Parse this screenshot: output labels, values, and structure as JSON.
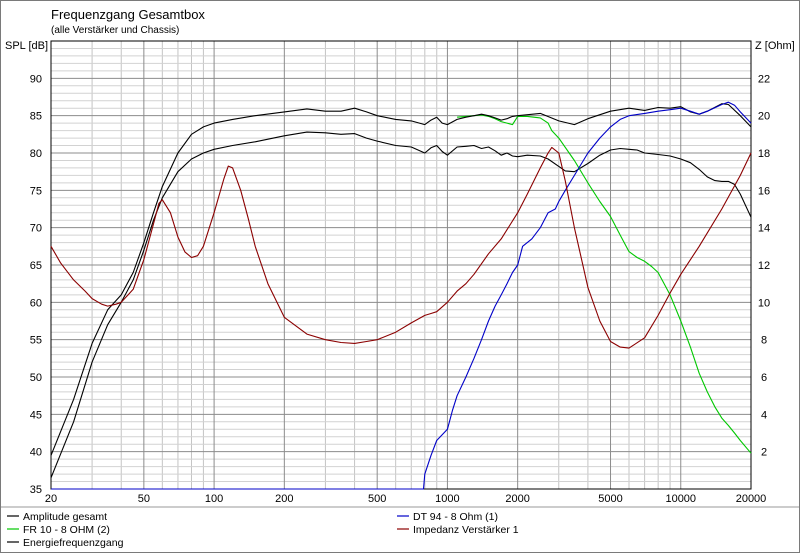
{
  "chart_data": {
    "type": "line",
    "title": "Frequenzgang Gesamtbox",
    "subtitle": "(alle Verstärker und Chassis)",
    "ylabel_left": "SPL [dB]",
    "ylabel_right": "Z [Ohm]",
    "xscale": "log",
    "xlim": [
      20,
      20000
    ],
    "ylim_left": [
      35,
      95
    ],
    "ylim_right": [
      0,
      24
    ],
    "x_ticks": [
      20,
      50,
      100,
      200,
      500,
      1000,
      2000,
      5000,
      10000,
      20000
    ],
    "x_tick_labels": [
      "20",
      "50",
      "100",
      "200",
      "500",
      "1000",
      "2000",
      "5000",
      "10000",
      "20000"
    ],
    "y_left_ticks": [
      35,
      40,
      45,
      50,
      55,
      60,
      65,
      70,
      75,
      80,
      85,
      90
    ],
    "y_left_tick_labels": [
      "35",
      "40",
      "45",
      "50",
      "55",
      "60",
      "65",
      "70",
      "75",
      "80",
      "85",
      "90"
    ],
    "y_right_ticks": [
      2,
      4,
      6,
      8,
      10,
      12,
      14,
      16,
      18,
      20,
      22
    ],
    "y_right_tick_labels": [
      "2",
      "4",
      "6",
      "8",
      "10",
      "12",
      "14",
      "16",
      "18",
      "20",
      "22"
    ],
    "grid": true,
    "legend_position": "bottom",
    "series": [
      {
        "name": "Amplitude gesamt",
        "color": "#000000",
        "axis": "left",
        "points": [
          [
            20,
            36.5
          ],
          [
            25,
            44
          ],
          [
            30,
            52
          ],
          [
            35,
            57
          ],
          [
            40,
            60
          ],
          [
            45,
            63
          ],
          [
            50,
            67
          ],
          [
            55,
            71
          ],
          [
            60,
            74
          ],
          [
            70,
            77.5
          ],
          [
            80,
            79.2
          ],
          [
            90,
            80
          ],
          [
            100,
            80.5
          ],
          [
            120,
            81
          ],
          [
            150,
            81.5
          ],
          [
            200,
            82.3
          ],
          [
            250,
            82.8
          ],
          [
            300,
            82.7
          ],
          [
            350,
            82.5
          ],
          [
            400,
            82.6
          ],
          [
            450,
            82.0
          ],
          [
            500,
            81.6
          ],
          [
            600,
            81.0
          ],
          [
            700,
            80.8
          ],
          [
            800,
            80.0
          ],
          [
            850,
            80.7
          ],
          [
            900,
            81.0
          ],
          [
            950,
            80.2
          ],
          [
            1000,
            79.7
          ],
          [
            1100,
            80.8
          ],
          [
            1200,
            80.9
          ],
          [
            1300,
            81.0
          ],
          [
            1400,
            80.6
          ],
          [
            1500,
            80.8
          ],
          [
            1600,
            80.3
          ],
          [
            1700,
            79.7
          ],
          [
            1800,
            80.0
          ],
          [
            1900,
            79.6
          ],
          [
            2000,
            79.5
          ],
          [
            2200,
            79.7
          ],
          [
            2500,
            79.6
          ],
          [
            2700,
            79.2
          ],
          [
            3000,
            78.2
          ],
          [
            3200,
            77.6
          ],
          [
            3500,
            77.5
          ],
          [
            4000,
            78.6
          ],
          [
            4500,
            79.7
          ],
          [
            5000,
            80.4
          ],
          [
            5500,
            80.6
          ],
          [
            6000,
            80.5
          ],
          [
            6500,
            80.4
          ],
          [
            7000,
            80.0
          ],
          [
            8000,
            79.8
          ],
          [
            9000,
            79.6
          ],
          [
            10000,
            79.2
          ],
          [
            11000,
            78.7
          ],
          [
            12000,
            77.8
          ],
          [
            13000,
            76.8
          ],
          [
            14000,
            76.3
          ],
          [
            15000,
            76.2
          ],
          [
            16000,
            76.2
          ],
          [
            17000,
            75.8
          ],
          [
            18000,
            74.5
          ],
          [
            20000,
            71.4
          ]
        ]
      },
      {
        "name": "FR 10 - 8 OHM (2)",
        "color": "#00c800",
        "axis": "left",
        "points": [
          [
            1100,
            84.8
          ],
          [
            1200,
            84.9
          ],
          [
            1300,
            85.0
          ],
          [
            1400,
            85.1
          ],
          [
            1500,
            84.9
          ],
          [
            1600,
            84.6
          ],
          [
            1700,
            84.2
          ],
          [
            1800,
            84.0
          ],
          [
            1900,
            83.8
          ],
          [
            2000,
            84.9
          ],
          [
            2200,
            84.9
          ],
          [
            2500,
            84.7
          ],
          [
            2700,
            84.0
          ],
          [
            2800,
            83.0
          ],
          [
            3000,
            82.0
          ],
          [
            3500,
            79.0
          ],
          [
            4000,
            76.0
          ],
          [
            4500,
            73.5
          ],
          [
            5000,
            71.5
          ],
          [
            5500,
            69.0
          ],
          [
            6000,
            66.8
          ],
          [
            6500,
            66.0
          ],
          [
            7000,
            65.5
          ],
          [
            7500,
            64.8
          ],
          [
            8000,
            64.0
          ],
          [
            9000,
            61.0
          ],
          [
            10000,
            57.5
          ],
          [
            11000,
            54.0
          ],
          [
            12000,
            50.5
          ],
          [
            13000,
            48.0
          ],
          [
            14000,
            46.0
          ],
          [
            15000,
            44.5
          ],
          [
            16000,
            43.5
          ],
          [
            17000,
            42.5
          ],
          [
            18000,
            41.5
          ],
          [
            20000,
            39.8
          ]
        ]
      },
      {
        "name": "Energiefrequenzgang",
        "color": "#000000",
        "axis": "left",
        "points": [
          [
            20,
            39.5
          ],
          [
            25,
            47
          ],
          [
            30,
            54.5
          ],
          [
            35,
            59
          ],
          [
            40,
            61
          ],
          [
            45,
            64
          ],
          [
            50,
            68
          ],
          [
            55,
            72
          ],
          [
            60,
            75.5
          ],
          [
            70,
            80
          ],
          [
            80,
            82.5
          ],
          [
            90,
            83.5
          ],
          [
            100,
            84.0
          ],
          [
            120,
            84.5
          ],
          [
            150,
            85.0
          ],
          [
            200,
            85.5
          ],
          [
            250,
            85.9
          ],
          [
            300,
            85.6
          ],
          [
            350,
            85.6
          ],
          [
            400,
            86.0
          ],
          [
            450,
            85.5
          ],
          [
            500,
            85.0
          ],
          [
            600,
            84.5
          ],
          [
            700,
            84.3
          ],
          [
            800,
            83.8
          ],
          [
            850,
            84.4
          ],
          [
            900,
            84.8
          ],
          [
            950,
            84.0
          ],
          [
            1000,
            83.8
          ],
          [
            1100,
            84.5
          ],
          [
            1200,
            84.8
          ],
          [
            1300,
            85.0
          ],
          [
            1400,
            85.2
          ],
          [
            1500,
            85.0
          ],
          [
            1600,
            84.7
          ],
          [
            1700,
            84.4
          ],
          [
            1800,
            84.6
          ],
          [
            1900,
            84.9
          ],
          [
            2000,
            85.0
          ],
          [
            2500,
            85.3
          ],
          [
            3000,
            84.3
          ],
          [
            3500,
            83.8
          ],
          [
            4000,
            84.6
          ],
          [
            5000,
            85.6
          ],
          [
            6000,
            86.0
          ],
          [
            7000,
            85.7
          ],
          [
            8000,
            86.1
          ],
          [
            9000,
            86.0
          ],
          [
            10000,
            86.2
          ],
          [
            11000,
            85.5
          ],
          [
            12000,
            85.2
          ],
          [
            13000,
            85.6
          ],
          [
            15000,
            86.6
          ],
          [
            16000,
            86.5
          ],
          [
            18000,
            85.0
          ],
          [
            20000,
            83.5
          ]
        ]
      },
      {
        "name": "DT 94 - 8 Ohm (1)",
        "color": "#0000c8",
        "axis": "left",
        "points": [
          [
            20,
            35
          ],
          [
            790,
            35
          ],
          [
            800,
            37.0
          ],
          [
            850,
            39.5
          ],
          [
            900,
            41.5
          ],
          [
            1000,
            43.0
          ],
          [
            1050,
            45.5
          ],
          [
            1100,
            47.5
          ],
          [
            1200,
            50.0
          ],
          [
            1300,
            52.5
          ],
          [
            1400,
            55.0
          ],
          [
            1500,
            57.5
          ],
          [
            1600,
            59.5
          ],
          [
            1700,
            61.0
          ],
          [
            1800,
            62.5
          ],
          [
            1900,
            64.0
          ],
          [
            2000,
            65.0
          ],
          [
            2100,
            67.5
          ],
          [
            2300,
            68.5
          ],
          [
            2500,
            70.0
          ],
          [
            2700,
            72.0
          ],
          [
            2900,
            72.5
          ],
          [
            3000,
            73.5
          ],
          [
            3200,
            75.0
          ],
          [
            3500,
            77.0
          ],
          [
            4000,
            80.0
          ],
          [
            4500,
            82.0
          ],
          [
            5000,
            83.5
          ],
          [
            5500,
            84.5
          ],
          [
            6000,
            85.0
          ],
          [
            7000,
            85.3
          ],
          [
            8000,
            85.6
          ],
          [
            9000,
            85.8
          ],
          [
            10000,
            86.0
          ],
          [
            11000,
            85.6
          ],
          [
            12000,
            85.2
          ],
          [
            13000,
            85.6
          ],
          [
            15000,
            86.5
          ],
          [
            16000,
            86.8
          ],
          [
            17000,
            86.4
          ],
          [
            18000,
            85.5
          ],
          [
            20000,
            84.0
          ]
        ]
      },
      {
        "name": "Impedanz Verstärker 1",
        "color": "#8b0000",
        "axis": "right",
        "points": [
          [
            20,
            13.0
          ],
          [
            22,
            12.1
          ],
          [
            25,
            11.2
          ],
          [
            28,
            10.6
          ],
          [
            30,
            10.2
          ],
          [
            33,
            9.9
          ],
          [
            35,
            9.8
          ],
          [
            38,
            9.9
          ],
          [
            40,
            10.0
          ],
          [
            45,
            10.7
          ],
          [
            50,
            12.3
          ],
          [
            55,
            14.2
          ],
          [
            58,
            15.3
          ],
          [
            60,
            15.5
          ],
          [
            65,
            14.8
          ],
          [
            70,
            13.5
          ],
          [
            75,
            12.7
          ],
          [
            80,
            12.4
          ],
          [
            85,
            12.5
          ],
          [
            90,
            13.0
          ],
          [
            100,
            14.8
          ],
          [
            110,
            16.6
          ],
          [
            115,
            17.3
          ],
          [
            120,
            17.2
          ],
          [
            130,
            16.0
          ],
          [
            140,
            14.5
          ],
          [
            150,
            13.0
          ],
          [
            170,
            11.0
          ],
          [
            200,
            9.2
          ],
          [
            250,
            8.3
          ],
          [
            300,
            8.0
          ],
          [
            350,
            7.85
          ],
          [
            400,
            7.8
          ],
          [
            450,
            7.9
          ],
          [
            500,
            8.0
          ],
          [
            600,
            8.4
          ],
          [
            700,
            8.9
          ],
          [
            800,
            9.3
          ],
          [
            850,
            9.4
          ],
          [
            900,
            9.5
          ],
          [
            1000,
            10.0
          ],
          [
            1100,
            10.6
          ],
          [
            1200,
            11.0
          ],
          [
            1300,
            11.5
          ],
          [
            1500,
            12.6
          ],
          [
            1700,
            13.4
          ],
          [
            2000,
            14.8
          ],
          [
            2200,
            15.8
          ],
          [
            2500,
            17.2
          ],
          [
            2700,
            18.0
          ],
          [
            2800,
            18.3
          ],
          [
            3000,
            18.0
          ],
          [
            3200,
            16.5
          ],
          [
            3500,
            14.0
          ],
          [
            4000,
            10.8
          ],
          [
            4500,
            9.0
          ],
          [
            5000,
            7.9
          ],
          [
            5500,
            7.6
          ],
          [
            6000,
            7.55
          ],
          [
            7000,
            8.1
          ],
          [
            8000,
            9.3
          ],
          [
            9000,
            10.5
          ],
          [
            10000,
            11.5
          ],
          [
            12000,
            13.0
          ],
          [
            15000,
            15.0
          ],
          [
            18000,
            16.8
          ],
          [
            20000,
            18.0
          ]
        ]
      }
    ]
  }
}
